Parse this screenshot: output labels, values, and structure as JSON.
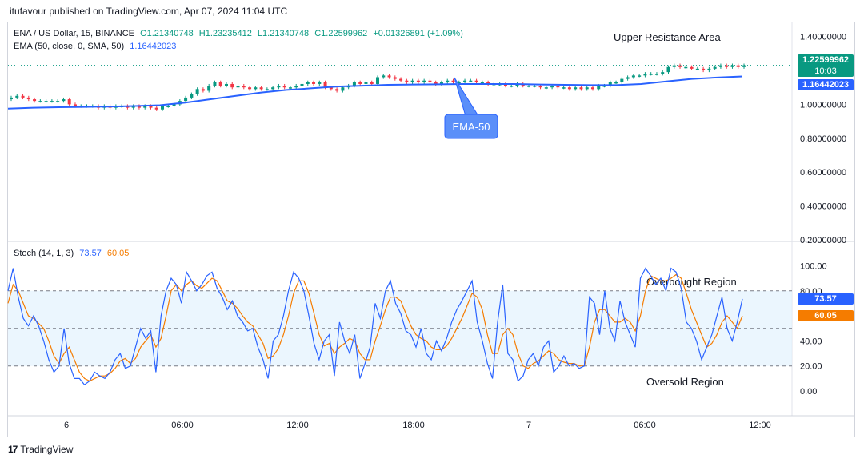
{
  "header": {
    "text": "itufavour published on TradingView.com, Apr 07, 2024 11:04 UTC"
  },
  "legend": {
    "symbol": "ENA / US Dollar, 15, BINANCE",
    "open": "O1.21340748",
    "high": "H1.23235412",
    "low": "L1.21340748",
    "close": "C1.22599962",
    "change": "+0.01326891 (+1.09%)",
    "ema_label": "EMA (50, close, 0, SMA, 50)",
    "ema_value": "1.16442023",
    "stoch_label": "Stoch (14, 1, 3)",
    "stoch_k": "73.57",
    "stoch_d": "60.05"
  },
  "annotations": {
    "upper_resistance": "Upper Resistance Area",
    "ema_callout": "EMA-50",
    "overbought": "Overbought Region",
    "oversold": "Oversold Region"
  },
  "price_tags": {
    "close": "1.22599962",
    "countdown": "10:03",
    "ema": "1.16442023",
    "stoch_k": "73.57",
    "stoch_d": "60.05"
  },
  "footer": {
    "brand": "TradingView"
  },
  "colors": {
    "up": "#089981",
    "down": "#f23645",
    "ema": "#2962ff",
    "k": "#2962ff",
    "d": "#f57c00",
    "band": "#e3f2fd"
  },
  "chart_data": [
    {
      "type": "candlestick",
      "series": [
        {
          "name": "ENA / US Dollar, 15, BINANCE",
          "closes": [
            1.04,
            1.05,
            1.04,
            1.03,
            1.02,
            1.02,
            1.02,
            1.02,
            1.02,
            1.03,
            1.0,
            0.99,
            0.99,
            0.99,
            0.99,
            0.98,
            0.99,
            0.98,
            0.99,
            0.99,
            0.98,
            0.99,
            0.98,
            0.99,
            0.98,
            0.97,
            0.99,
            0.99,
            1.0,
            1.02,
            1.04,
            1.06,
            1.09,
            1.08,
            1.11,
            1.13,
            1.11,
            1.12,
            1.1,
            1.11,
            1.1,
            1.09,
            1.1,
            1.09,
            1.09,
            1.1,
            1.11,
            1.1,
            1.1,
            1.11,
            1.12,
            1.13,
            1.12,
            1.13,
            1.1,
            1.09,
            1.08,
            1.1,
            1.11,
            1.13,
            1.12,
            1.13,
            1.12,
            1.16,
            1.17,
            1.16,
            1.15,
            1.14,
            1.13,
            1.14,
            1.13,
            1.14,
            1.13,
            1.12,
            1.13,
            1.14,
            1.13,
            1.13,
            1.14,
            1.14,
            1.13,
            1.13,
            1.12,
            1.12,
            1.12,
            1.11,
            1.11,
            1.12,
            1.11,
            1.11,
            1.11,
            1.1,
            1.1,
            1.11,
            1.1,
            1.1,
            1.09,
            1.1,
            1.09,
            1.1,
            1.09,
            1.11,
            1.11,
            1.13,
            1.13,
            1.15,
            1.16,
            1.17,
            1.17,
            1.18,
            1.18,
            1.18,
            1.19,
            1.22,
            1.23,
            1.22,
            1.22,
            1.21,
            1.21,
            1.2,
            1.21,
            1.22,
            1.23,
            1.22,
            1.23,
            1.22,
            1.23
          ]
        },
        {
          "name": "EMA (50, close, 0, SMA, 50)",
          "values": [
            0.975,
            0.98,
            0.983,
            0.985,
            0.987,
            0.99,
            0.995,
            1.01,
            1.03,
            1.05,
            1.07,
            1.085,
            1.095,
            1.105,
            1.11,
            1.115,
            1.117,
            1.118,
            1.12,
            1.12,
            1.12,
            1.117,
            1.115,
            1.113,
            1.113,
            1.12,
            1.135,
            1.15,
            1.158,
            1.16442023
          ]
        }
      ],
      "ylim": [
        0.2,
        1.45
      ],
      "y_ticks": [
        "1.40000000",
        "1.20000000",
        "1.00000000",
        "0.80000000",
        "0.60000000",
        "0.40000000",
        "0.20000000"
      ]
    },
    {
      "type": "line",
      "title": "Stoch (14, 1, 3)",
      "series": [
        {
          "name": "%K",
          "values": [
            80,
            98,
            75,
            58,
            52,
            60,
            52,
            40,
            25,
            15,
            20,
            50,
            22,
            10,
            10,
            5,
            8,
            15,
            12,
            10,
            15,
            25,
            30,
            18,
            20,
            35,
            50,
            42,
            48,
            15,
            60,
            80,
            90,
            85,
            70,
            95,
            88,
            80,
            85,
            92,
            95,
            82,
            75,
            65,
            72,
            60,
            55,
            48,
            50,
            35,
            25,
            10,
            40,
            45,
            60,
            80,
            95,
            90,
            80,
            60,
            38,
            25,
            40,
            45,
            12,
            55,
            40,
            30,
            45,
            10,
            22,
            35,
            70,
            58,
            80,
            88,
            70,
            62,
            48,
            45,
            35,
            50,
            30,
            25,
            40,
            32,
            42,
            55,
            65,
            72,
            80,
            88,
            55,
            40,
            22,
            10,
            55,
            85,
            30,
            25,
            8,
            12,
            25,
            30,
            20,
            35,
            40,
            15,
            20,
            28,
            20,
            22,
            18,
            20,
            75,
            70,
            45,
            80,
            50,
            40,
            72,
            55,
            45,
            35,
            90,
            98,
            92,
            85,
            90,
            80,
            98,
            95,
            82,
            55,
            50,
            40,
            25,
            35,
            45,
            60,
            75,
            50,
            40,
            55,
            73.57
          ]
        },
        {
          "name": "%D",
          "values": [
            70,
            85,
            80,
            70,
            60,
            58,
            54,
            50,
            40,
            28,
            22,
            30,
            35,
            25,
            15,
            10,
            8,
            10,
            12,
            12,
            14,
            18,
            24,
            26,
            22,
            26,
            35,
            40,
            45,
            35,
            42,
            60,
            80,
            85,
            80,
            85,
            88,
            84,
            82,
            86,
            90,
            88,
            80,
            72,
            70,
            66,
            60,
            55,
            52,
            45,
            38,
            26,
            28,
            34,
            45,
            60,
            78,
            88,
            88,
            78,
            62,
            45,
            36,
            38,
            30,
            35,
            38,
            42,
            40,
            30,
            25,
            25,
            40,
            52,
            65,
            75,
            75,
            72,
            62,
            52,
            45,
            42,
            40,
            35,
            33,
            33,
            36,
            42,
            50,
            58,
            68,
            78,
            75,
            65,
            45,
            30,
            30,
            45,
            50,
            45,
            30,
            20,
            18,
            22,
            24,
            28,
            32,
            30,
            25,
            23,
            22,
            22,
            20,
            20,
            35,
            55,
            65,
            65,
            60,
            55,
            55,
            58,
            55,
            48,
            60,
            80,
            92,
            90,
            88,
            88,
            90,
            93,
            90,
            78,
            65,
            55,
            45,
            35,
            38,
            45,
            55,
            60,
            55,
            50,
            60.05
          ]
        }
      ],
      "ylim": [
        0,
        100
      ],
      "y_ticks": [
        "100.00",
        "80.00",
        "40.00",
        "20.00",
        "0.00"
      ],
      "bands": [
        20,
        50,
        80
      ]
    }
  ],
  "x_ticks": [
    "6",
    "06:00",
    "12:00",
    "18:00",
    "7",
    "06:00",
    "12:00"
  ]
}
